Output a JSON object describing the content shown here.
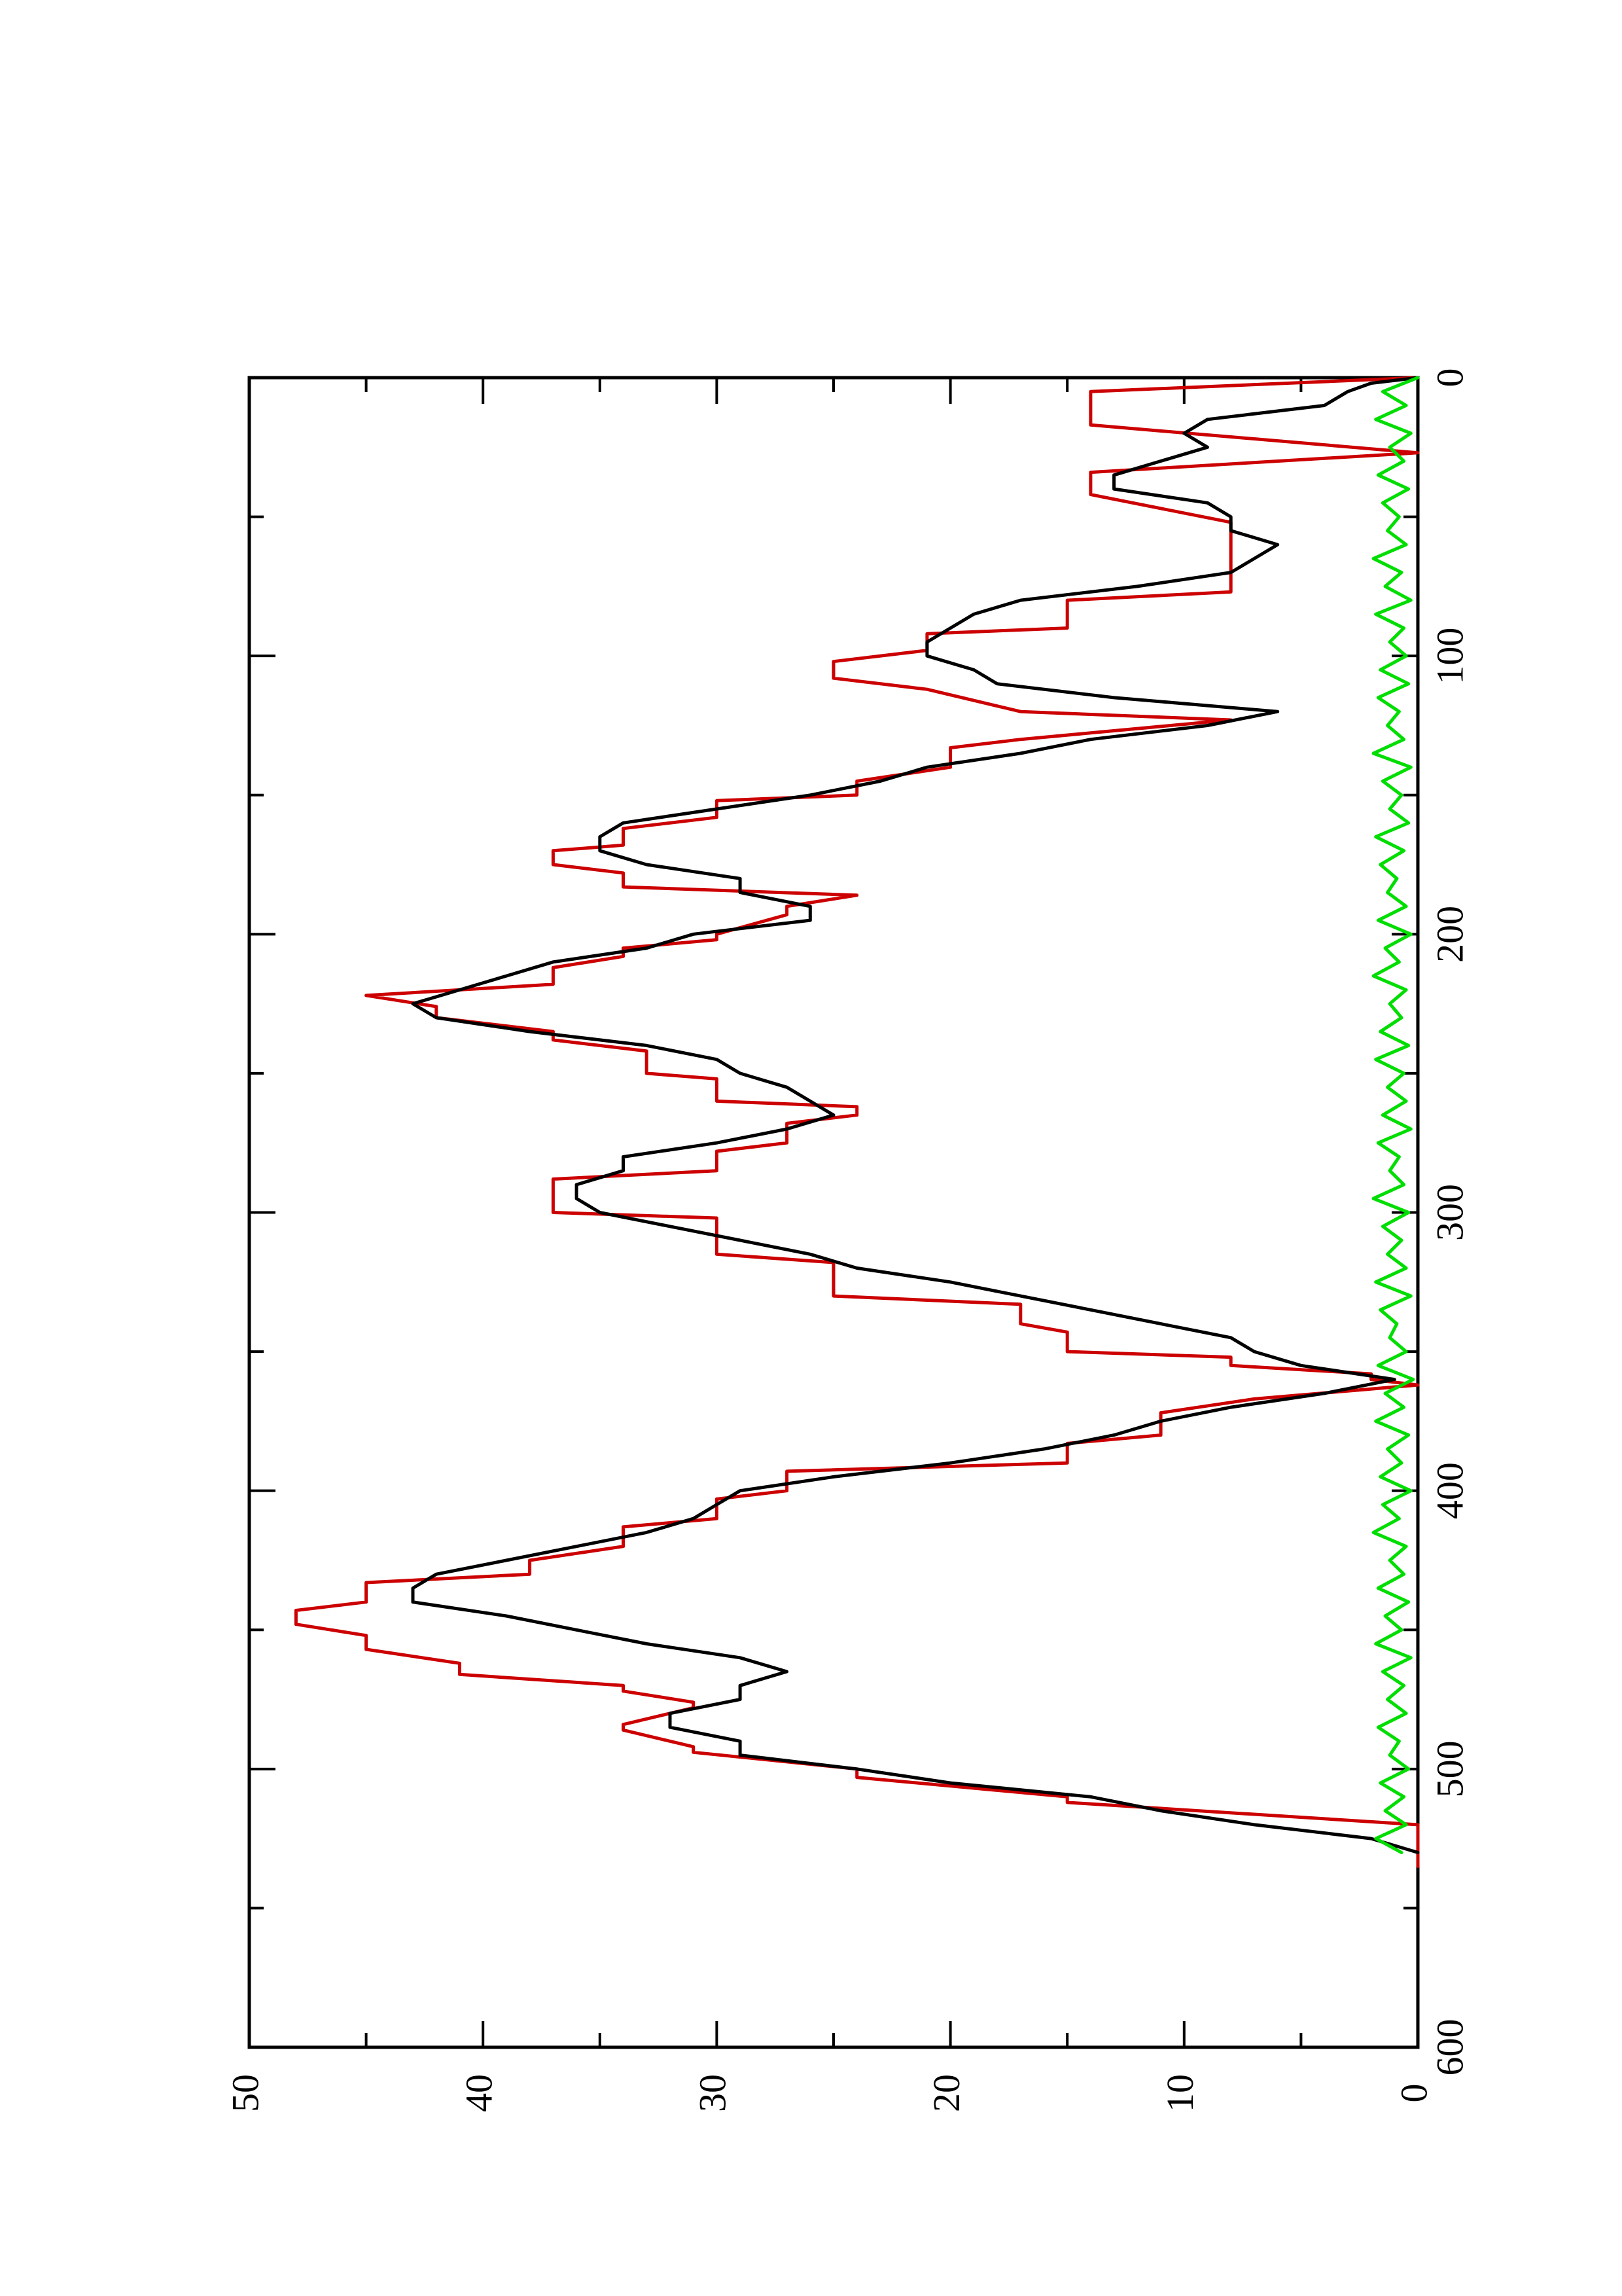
{
  "chart_data": {
    "type": "line",
    "orientation": "rotated-90-clockwise",
    "title": "",
    "xlabel": "",
    "ylabel": "",
    "xlim": [
      0,
      600
    ],
    "ylim": [
      0,
      50
    ],
    "x_ticks": [
      0,
      100,
      200,
      300,
      400,
      500,
      600
    ],
    "x_minor_ticks": [
      50,
      150,
      250,
      350,
      450,
      550
    ],
    "y_ticks": [
      0,
      10,
      20,
      30,
      40,
      50
    ],
    "y_minor_ticks": [
      5,
      15,
      25,
      35,
      45
    ],
    "x_tick_labels": [
      "0",
      "100",
      "200",
      "300",
      "400",
      "500",
      "600"
    ],
    "y_tick_labels": [
      "0",
      "10",
      "20",
      "30",
      "40",
      "50"
    ],
    "grid": false,
    "legend": "none",
    "series": [
      {
        "color": "#cc0000",
        "style": "step-like",
        "x": [
          0,
          5,
          17,
          27,
          34,
          42,
          52,
          77,
          80,
          90,
          92,
          98,
          102,
          108,
          112,
          120,
          123,
          130,
          133,
          140,
          145,
          150,
          152,
          158,
          162,
          168,
          170,
          175,
          178,
          183,
          186,
          190,
          193,
          200,
          202,
          205,
          208,
          212,
          218,
          222,
          226,
          230,
          235,
          238,
          242,
          250,
          252,
          260,
          262,
          265,
          268,
          275,
          278,
          285,
          288,
          300,
          302,
          315,
          318,
          330,
          333,
          340,
          343,
          350,
          352,
          355,
          358,
          360,
          362,
          367,
          372,
          380,
          383,
          390,
          393,
          400,
          403,
          410,
          413,
          420,
          425,
          430,
          433,
          440,
          443,
          448,
          452,
          457,
          462,
          466,
          470,
          472,
          476,
          478,
          484,
          486,
          492,
          494,
          500,
          503,
          510,
          512,
          520,
          522,
          528,
          535
        ],
        "y": [
          0,
          14,
          14,
          0,
          14,
          14,
          8,
          8,
          15,
          15,
          21,
          21,
          25,
          25,
          21,
          17,
          8,
          17,
          20,
          20,
          24,
          24,
          30,
          30,
          34,
          34,
          37,
          37,
          34,
          34,
          24,
          27,
          27,
          30,
          30,
          34,
          34,
          37,
          37,
          45,
          42,
          42,
          37,
          37,
          33,
          33,
          30,
          30,
          24,
          24,
          27,
          27,
          30,
          30,
          37,
          37,
          30,
          30,
          25,
          25,
          17,
          17,
          15,
          15,
          8,
          8,
          2,
          2,
          0,
          7,
          11,
          11,
          15,
          15,
          27,
          27,
          30,
          30,
          34,
          34,
          38,
          38,
          45,
          45,
          48,
          48,
          45,
          45,
          41,
          41,
          34,
          34,
          31,
          31,
          34,
          34,
          31,
          31,
          24,
          24,
          15,
          15,
          0,
          0,
          0,
          0
        ]
      },
      {
        "color": "#000000",
        "style": "smooth",
        "x": [
          0,
          2,
          5,
          10,
          15,
          20,
          25,
          30,
          35,
          40,
          45,
          50,
          55,
          60,
          65,
          70,
          75,
          80,
          85,
          90,
          95,
          100,
          105,
          110,
          115,
          120,
          125,
          130,
          135,
          140,
          145,
          150,
          155,
          160,
          165,
          170,
          175,
          180,
          185,
          190,
          195,
          200,
          205,
          210,
          215,
          220,
          225,
          230,
          235,
          240,
          245,
          250,
          255,
          260,
          265,
          270,
          275,
          280,
          285,
          290,
          295,
          300,
          305,
          310,
          315,
          320,
          325,
          330,
          335,
          340,
          345,
          350,
          355,
          360,
          365,
          370,
          375,
          380,
          385,
          390,
          395,
          400,
          405,
          410,
          415,
          420,
          425,
          430,
          435,
          440,
          445,
          450,
          455,
          460,
          465,
          470,
          475,
          480,
          485,
          490,
          495,
          500,
          505,
          510,
          515,
          520,
          525,
          530
        ],
        "y": [
          0,
          2,
          3,
          4,
          9,
          10,
          9,
          11,
          13,
          13,
          9,
          8,
          8,
          6,
          7,
          8,
          12,
          17,
          19,
          20,
          21,
          21,
          19,
          18,
          13,
          6,
          9,
          14,
          17,
          21,
          23,
          26,
          30,
          34,
          35,
          35,
          33,
          29,
          29,
          26,
          26,
          31,
          33,
          37,
          39,
          41,
          43,
          42,
          38,
          33,
          30,
          29,
          27,
          26,
          25,
          27,
          30,
          34,
          34,
          36,
          36,
          35,
          32,
          29,
          26,
          24,
          20,
          17,
          14,
          11,
          8,
          7,
          5,
          1,
          4,
          8,
          11,
          13,
          16,
          20,
          25,
          29,
          30,
          31,
          33,
          36,
          39,
          42,
          43,
          43,
          39,
          36,
          33,
          29,
          27,
          29,
          29,
          32,
          32,
          29,
          29,
          24,
          20,
          14,
          11,
          7,
          2,
          0
        ]
      },
      {
        "color": "#00dd00",
        "style": "noise",
        "x": [
          0,
          5,
          10,
          15,
          20,
          25,
          30,
          35,
          40,
          45,
          50,
          55,
          60,
          65,
          70,
          75,
          80,
          85,
          90,
          95,
          100,
          105,
          110,
          115,
          120,
          125,
          130,
          135,
          140,
          145,
          150,
          155,
          160,
          165,
          170,
          175,
          180,
          185,
          190,
          195,
          200,
          205,
          210,
          215,
          220,
          225,
          230,
          235,
          240,
          245,
          250,
          255,
          260,
          265,
          270,
          275,
          280,
          285,
          290,
          295,
          300,
          305,
          310,
          315,
          320,
          325,
          330,
          335,
          340,
          345,
          350,
          355,
          360,
          365,
          370,
          375,
          380,
          385,
          390,
          395,
          400,
          405,
          410,
          415,
          420,
          425,
          430,
          435,
          440,
          445,
          450,
          455,
          460,
          465,
          470,
          475,
          480,
          485,
          490,
          495,
          500,
          505,
          510,
          515,
          520,
          525,
          530
        ],
        "y": [
          0,
          1.5,
          0.5,
          1.8,
          0.3,
          1.2,
          0.6,
          1.7,
          0.4,
          1.5,
          0.8,
          1.3,
          0.5,
          1.9,
          0.7,
          1.4,
          0.3,
          1.8,
          0.6,
          1.2,
          0.5,
          1.6,
          0.4,
          1.7,
          0.8,
          1.3,
          0.6,
          1.9,
          0.3,
          1.5,
          0.7,
          1.2,
          0.4,
          1.8,
          0.6,
          1.6,
          0.9,
          1.3,
          0.5,
          1.7,
          0.3,
          1.4,
          0.8,
          1.9,
          0.5,
          1.2,
          0.7,
          1.6,
          0.4,
          1.8,
          0.6,
          1.3,
          0.5,
          1.5,
          0.3,
          1.7,
          0.8,
          1.2,
          0.6,
          1.9,
          0.4,
          1.5,
          0.7,
          1.3,
          0.5,
          1.8,
          0.3,
          1.6,
          0.9,
          1.2,
          0.5,
          1.7,
          0.2,
          1.4,
          0.6,
          1.8,
          0.4,
          1.3,
          0.7,
          1.6,
          0.3,
          1.5,
          0.8,
          1.9,
          0.5,
          1.2,
          0.6,
          1.7,
          0.4,
          1.4,
          0.7,
          1.8,
          0.3,
          1.5,
          0.6,
          1.3,
          0.5,
          1.7,
          0.8,
          1.2,
          0.4,
          1.6,
          0.6,
          1.4,
          0.5,
          1.8,
          0.7
        ]
      }
    ]
  }
}
